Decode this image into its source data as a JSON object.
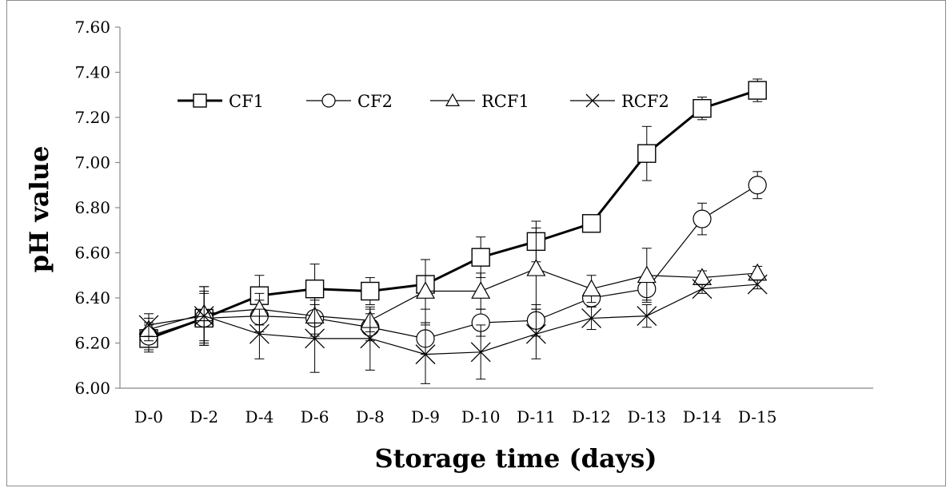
{
  "chart_data": {
    "type": "line",
    "title": "",
    "xlabel": "Storage time (days)",
    "ylabel": "pH value",
    "ylim": [
      6.0,
      7.6
    ],
    "yticks": [
      "6.00",
      "6.20",
      "6.40",
      "6.60",
      "6.80",
      "7.00",
      "7.20",
      "7.40",
      "7.60"
    ],
    "categories": [
      "D-0",
      "D-2",
      "D-4",
      "D-6",
      "D-8",
      "D-9",
      "D-10",
      "D-11",
      "D-12",
      "D-13",
      "D-14",
      "D-15"
    ],
    "grid": false,
    "legend_position": "top-left",
    "series": [
      {
        "name": "CF1",
        "marker": "square",
        "line_weight": "bold",
        "color": "#000000",
        "values": [
          6.22,
          6.31,
          6.41,
          6.44,
          6.43,
          6.46,
          6.58,
          6.65,
          6.73,
          7.04,
          7.24,
          7.32
        ],
        "errors": [
          0.06,
          0.11,
          0.09,
          0.11,
          0.06,
          0.11,
          0.09,
          0.09,
          0.03,
          0.12,
          0.05,
          0.05
        ]
      },
      {
        "name": "CF2",
        "marker": "circle",
        "line_weight": "thin",
        "color": "#000000",
        "values": [
          6.23,
          6.31,
          6.32,
          6.31,
          6.27,
          6.22,
          6.29,
          6.3,
          6.4,
          6.44,
          6.75,
          6.9
        ],
        "errors": [
          0.06,
          0.12,
          0.07,
          0.08,
          0.06,
          0.07,
          0.06,
          0.07,
          0.04,
          0.05,
          0.07,
          0.06
        ]
      },
      {
        "name": "RCF1",
        "marker": "triangle",
        "line_weight": "thin",
        "color": "#000000",
        "values": [
          6.26,
          6.33,
          6.35,
          6.32,
          6.3,
          6.43,
          6.43,
          6.53,
          6.44,
          6.5,
          6.49,
          6.51
        ],
        "errors": [
          0.05,
          0.12,
          0.07,
          0.08,
          0.05,
          0.14,
          0.08,
          0.18,
          0.06,
          0.12,
          0.03,
          0.03
        ]
      },
      {
        "name": "RCF2",
        "marker": "x",
        "line_weight": "thin",
        "color": "#000000",
        "values": [
          6.28,
          6.32,
          6.24,
          6.22,
          6.22,
          6.15,
          6.16,
          6.24,
          6.31,
          6.32,
          6.44,
          6.46
        ],
        "errors": [
          0.05,
          0.13,
          0.11,
          0.15,
          0.14,
          0.13,
          0.12,
          0.11,
          0.05,
          0.05,
          0.02,
          0.02
        ]
      }
    ]
  }
}
